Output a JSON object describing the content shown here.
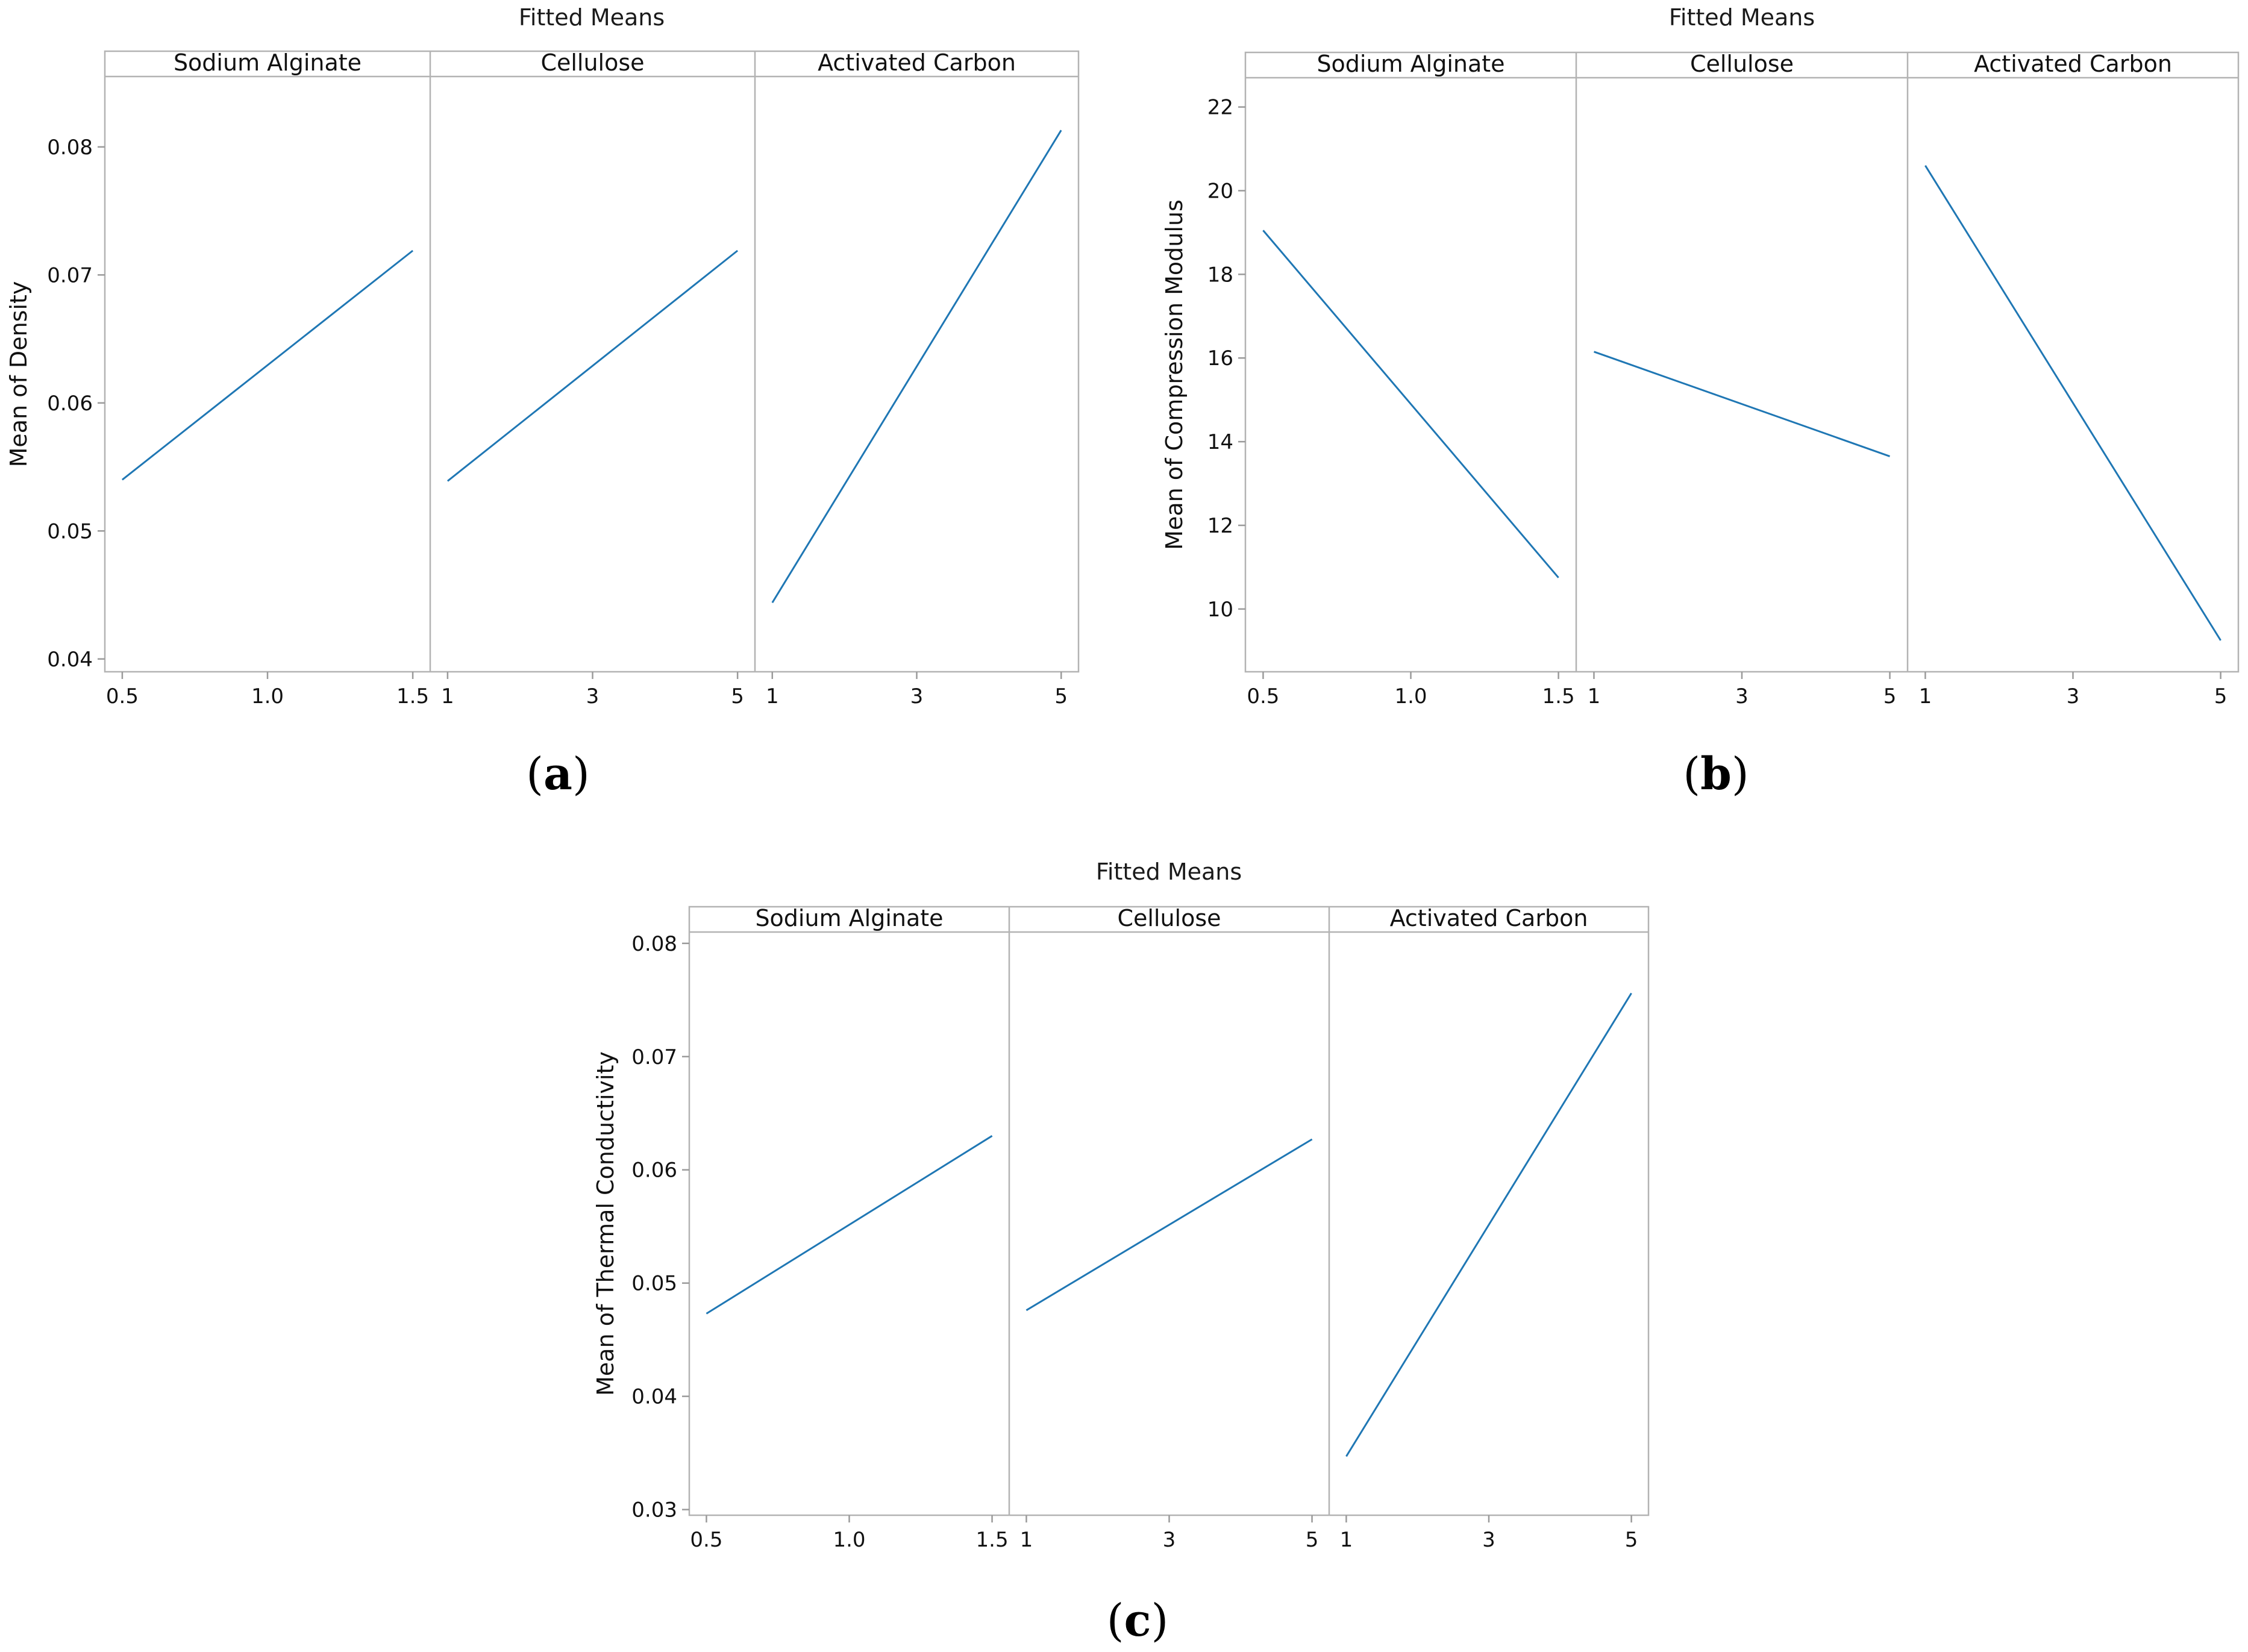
{
  "chart_data": [
    {
      "type": "line",
      "caption": "(a)",
      "caption_letter": "a",
      "title": "Fitted Means",
      "ylabel": "Mean of Density",
      "ylim": [
        0.039,
        0.0855
      ],
      "yticks": [
        "0.04",
        "0.05",
        "0.06",
        "0.07",
        "0.08"
      ],
      "panels": [
        {
          "name": "Sodium Alginate",
          "xlim": [
            0.44,
            1.56
          ],
          "xticks": [
            "0.5",
            "1.0",
            "1.5"
          ],
          "x": [
            0.5,
            1.5
          ],
          "y": [
            0.054,
            0.0719
          ]
        },
        {
          "name": "Cellulose",
          "xlim": [
            0.76,
            5.24
          ],
          "xticks": [
            "1",
            "3",
            "5"
          ],
          "x": [
            1,
            5
          ],
          "y": [
            0.0539,
            0.0719
          ]
        },
        {
          "name": "Activated Carbon",
          "xlim": [
            0.76,
            5.24
          ],
          "xticks": [
            "1",
            "3",
            "5"
          ],
          "x": [
            1,
            5
          ],
          "y": [
            0.0444,
            0.0813
          ]
        }
      ]
    },
    {
      "type": "line",
      "caption": "(b)",
      "caption_letter": "b",
      "title": "Fitted Means",
      "ylabel": "Mean of Compression Modulus",
      "ylim": [
        8.5,
        22.7
      ],
      "yticks": [
        "10",
        "12",
        "14",
        "16",
        "18",
        "20",
        "22"
      ],
      "panels": [
        {
          "name": "Sodium Alginate",
          "xlim": [
            0.44,
            1.56
          ],
          "xticks": [
            "0.5",
            "1.0",
            "1.5"
          ],
          "x": [
            0.5,
            1.5
          ],
          "y": [
            19.05,
            10.75
          ]
        },
        {
          "name": "Cellulose",
          "xlim": [
            0.76,
            5.24
          ],
          "xticks": [
            "1",
            "3",
            "5"
          ],
          "x": [
            1,
            5
          ],
          "y": [
            16.15,
            13.65
          ]
        },
        {
          "name": "Activated Carbon",
          "xlim": [
            0.76,
            5.24
          ],
          "xticks": [
            "1",
            "3",
            "5"
          ],
          "x": [
            1,
            5
          ],
          "y": [
            20.6,
            9.25
          ]
        }
      ]
    },
    {
      "type": "line",
      "caption": "(c)",
      "caption_letter": "c",
      "title": "Fitted Means",
      "ylabel": "Mean of Thermal Conductivity",
      "ylim": [
        0.0295,
        0.081
      ],
      "yticks": [
        "0.03",
        "0.04",
        "0.05",
        "0.06",
        "0.07",
        "0.08"
      ],
      "panels": [
        {
          "name": "Sodium Alginate",
          "xlim": [
            0.44,
            1.56
          ],
          "xticks": [
            "0.5",
            "1.0",
            "1.5"
          ],
          "x": [
            0.5,
            1.5
          ],
          "y": [
            0.0473,
            0.063
          ]
        },
        {
          "name": "Cellulose",
          "xlim": [
            0.76,
            5.24
          ],
          "xticks": [
            "1",
            "3",
            "5"
          ],
          "x": [
            1,
            5
          ],
          "y": [
            0.0476,
            0.0627
          ]
        },
        {
          "name": "Activated Carbon",
          "xlim": [
            0.76,
            5.24
          ],
          "xticks": [
            "1",
            "3",
            "5"
          ],
          "x": [
            1,
            5
          ],
          "y": [
            0.0347,
            0.0756
          ]
        }
      ]
    }
  ],
  "colors": {
    "line": "#1f77b4",
    "frame": "#b3b3b3",
    "axis": "#9a9a9a",
    "text": "#111111"
  }
}
